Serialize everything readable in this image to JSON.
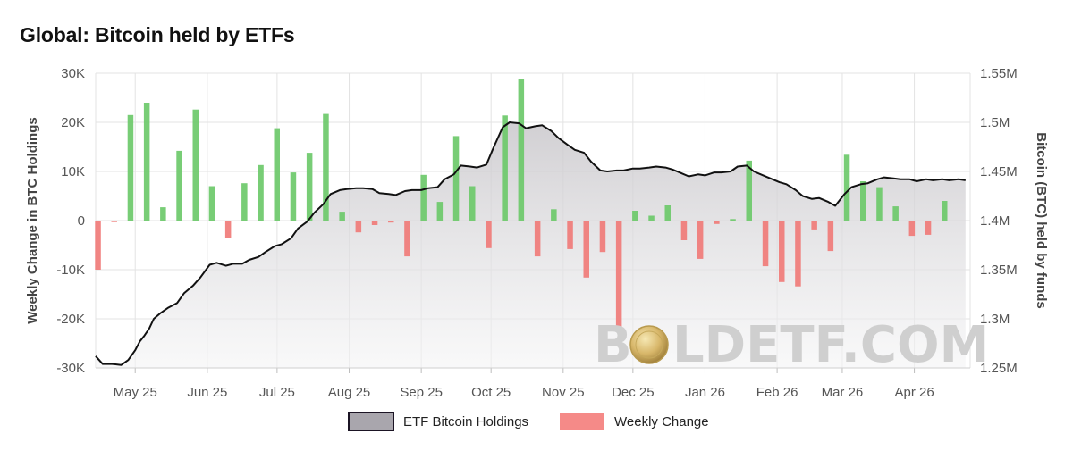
{
  "chart_data": {
    "type": "bar+area",
    "title": "Global: Bitcoin held by ETFs",
    "y_left_label": "Weekly Change in BTC Holdings",
    "y_right_label": "Bitcoin (BTC) held by funds",
    "y_left_range": [
      -30000,
      30000
    ],
    "y_right_range": [
      1250000,
      1550000
    ],
    "y_left_ticks": [
      "30K",
      "20K",
      "10K",
      "0",
      "-10K",
      "-20K",
      "-30K"
    ],
    "y_right_ticks": [
      "1.55M",
      "1.5M",
      "1.45M",
      "1.4M",
      "1.35M",
      "1.3M",
      "1.25M"
    ],
    "x_range": [
      "2025-04-14",
      "2026-04-25"
    ],
    "x_ticks": [
      {
        "label": "May 25",
        "date": "2025-05-01"
      },
      {
        "label": "Jun 25",
        "date": "2025-06-01"
      },
      {
        "label": "Jul 25",
        "date": "2025-07-01"
      },
      {
        "label": "Aug 25",
        "date": "2025-08-01"
      },
      {
        "label": "Sep 25",
        "date": "2025-09-01"
      },
      {
        "label": "Oct 25",
        "date": "2025-10-01"
      },
      {
        "label": "Nov 25",
        "date": "2025-11-01"
      },
      {
        "label": "Dec 25",
        "date": "2025-12-01"
      },
      {
        "label": "Jan 26",
        "date": "2026-01-01"
      },
      {
        "label": "Feb 26",
        "date": "2026-02-01"
      },
      {
        "label": "Mar 26",
        "date": "2026-03-01"
      },
      {
        "label": "Apr 26",
        "date": "2026-04-01"
      }
    ],
    "series": [
      {
        "name": "ETF Bitcoin Holdings",
        "type": "area",
        "axis": "right",
        "color": "#111111",
        "fill": "#b8b6ba",
        "points": [
          [
            "2025-04-14",
            1262000
          ],
          [
            "2025-04-17",
            1254000
          ],
          [
            "2025-04-21",
            1254000
          ],
          [
            "2025-04-25",
            1253000
          ],
          [
            "2025-04-28",
            1258000
          ],
          [
            "2025-05-01",
            1268000
          ],
          [
            "2025-05-03",
            1277000
          ],
          [
            "2025-05-05",
            1283000
          ],
          [
            "2025-05-07",
            1290000
          ],
          [
            "2025-05-09",
            1300000
          ],
          [
            "2025-05-12",
            1306000
          ],
          [
            "2025-05-15",
            1311000
          ],
          [
            "2025-05-19",
            1316000
          ],
          [
            "2025-05-22",
            1326000
          ],
          [
            "2025-05-26",
            1334000
          ],
          [
            "2025-05-29",
            1342000
          ],
          [
            "2025-06-02",
            1355000
          ],
          [
            "2025-06-05",
            1357000
          ],
          [
            "2025-06-09",
            1354000
          ],
          [
            "2025-06-12",
            1356000
          ],
          [
            "2025-06-16",
            1356000
          ],
          [
            "2025-06-19",
            1360000
          ],
          [
            "2025-06-23",
            1363000
          ],
          [
            "2025-06-26",
            1368000
          ],
          [
            "2025-06-30",
            1374000
          ],
          [
            "2025-07-03",
            1376000
          ],
          [
            "2025-07-07",
            1382000
          ],
          [
            "2025-07-10",
            1392000
          ],
          [
            "2025-07-14",
            1399000
          ],
          [
            "2025-07-17",
            1408000
          ],
          [
            "2025-07-21",
            1417000
          ],
          [
            "2025-07-24",
            1427000
          ],
          [
            "2025-07-28",
            1431000
          ],
          [
            "2025-07-31",
            1432000
          ],
          [
            "2025-08-04",
            1433000
          ],
          [
            "2025-08-07",
            1433000
          ],
          [
            "2025-08-11",
            1432000
          ],
          [
            "2025-08-14",
            1428000
          ],
          [
            "2025-08-18",
            1427000
          ],
          [
            "2025-08-21",
            1426000
          ],
          [
            "2025-08-25",
            1430000
          ],
          [
            "2025-08-28",
            1431000
          ],
          [
            "2025-09-01",
            1431000
          ],
          [
            "2025-09-04",
            1433000
          ],
          [
            "2025-09-08",
            1434000
          ],
          [
            "2025-09-11",
            1442000
          ],
          [
            "2025-09-15",
            1447000
          ],
          [
            "2025-09-18",
            1456000
          ],
          [
            "2025-09-22",
            1455000
          ],
          [
            "2025-09-25",
            1454000
          ],
          [
            "2025-09-29",
            1457000
          ],
          [
            "2025-10-02",
            1474000
          ],
          [
            "2025-10-06",
            1495000
          ],
          [
            "2025-10-09",
            1500000
          ],
          [
            "2025-10-13",
            1499000
          ],
          [
            "2025-10-16",
            1494000
          ],
          [
            "2025-10-20",
            1496000
          ],
          [
            "2025-10-23",
            1497000
          ],
          [
            "2025-10-27",
            1491000
          ],
          [
            "2025-10-30",
            1484000
          ],
          [
            "2025-11-03",
            1477000
          ],
          [
            "2025-11-06",
            1472000
          ],
          [
            "2025-11-10",
            1469000
          ],
          [
            "2025-11-13",
            1460000
          ],
          [
            "2025-11-17",
            1451000
          ],
          [
            "2025-11-20",
            1450000
          ],
          [
            "2025-11-24",
            1451000
          ],
          [
            "2025-11-27",
            1451000
          ],
          [
            "2025-12-01",
            1453000
          ],
          [
            "2025-12-04",
            1453000
          ],
          [
            "2025-12-08",
            1454000
          ],
          [
            "2025-12-11",
            1455000
          ],
          [
            "2025-12-15",
            1454000
          ],
          [
            "2025-12-18",
            1452000
          ],
          [
            "2025-12-22",
            1448000
          ],
          [
            "2025-12-25",
            1445000
          ],
          [
            "2025-12-29",
            1447000
          ],
          [
            "2026-01-01",
            1446000
          ],
          [
            "2026-01-05",
            1449000
          ],
          [
            "2026-01-08",
            1449000
          ],
          [
            "2026-01-12",
            1450000
          ],
          [
            "2026-01-15",
            1455000
          ],
          [
            "2026-01-19",
            1456000
          ],
          [
            "2026-01-22",
            1450000
          ],
          [
            "2026-01-26",
            1446000
          ],
          [
            "2026-01-29",
            1443000
          ],
          [
            "2026-02-02",
            1439000
          ],
          [
            "2026-02-05",
            1437000
          ],
          [
            "2026-02-09",
            1431000
          ],
          [
            "2026-02-12",
            1425000
          ],
          [
            "2026-02-16",
            1422000
          ],
          [
            "2026-02-19",
            1423000
          ],
          [
            "2026-02-23",
            1419000
          ],
          [
            "2026-02-26",
            1415000
          ],
          [
            "2026-03-02",
            1427000
          ],
          [
            "2026-03-05",
            1434000
          ],
          [
            "2026-03-09",
            1437000
          ],
          [
            "2026-03-12",
            1438000
          ],
          [
            "2026-03-16",
            1442000
          ],
          [
            "2026-03-19",
            1444000
          ],
          [
            "2026-03-23",
            1443000
          ],
          [
            "2026-03-26",
            1442000
          ],
          [
            "2026-03-30",
            1442000
          ],
          [
            "2026-04-02",
            1440000
          ],
          [
            "2026-04-06",
            1442000
          ],
          [
            "2026-04-09",
            1441000
          ],
          [
            "2026-04-13",
            1442000
          ],
          [
            "2026-04-16",
            1441000
          ],
          [
            "2026-04-20",
            1442000
          ],
          [
            "2026-04-23",
            1441000
          ]
        ]
      },
      {
        "name": "Weekly Change",
        "type": "bar",
        "axis": "left",
        "color_positive": "#6cc96a",
        "color_negative": "#f07b78",
        "points": [
          [
            "2025-04-14",
            -10000
          ],
          [
            "2025-04-21",
            -300
          ],
          [
            "2025-04-28",
            21500
          ],
          [
            "2025-05-05",
            24000
          ],
          [
            "2025-05-12",
            2700
          ],
          [
            "2025-05-19",
            14200
          ],
          [
            "2025-05-26",
            22600
          ],
          [
            "2025-06-02",
            7000
          ],
          [
            "2025-06-09",
            -3500
          ],
          [
            "2025-06-16",
            7600
          ],
          [
            "2025-06-23",
            11300
          ],
          [
            "2025-06-30",
            18800
          ],
          [
            "2025-07-07",
            9800
          ],
          [
            "2025-07-14",
            13800
          ],
          [
            "2025-07-21",
            21700
          ],
          [
            "2025-07-28",
            1800
          ],
          [
            "2025-08-04",
            -2400
          ],
          [
            "2025-08-11",
            -900
          ],
          [
            "2025-08-18",
            -400
          ],
          [
            "2025-08-25",
            -7300
          ],
          [
            "2025-09-01",
            9300
          ],
          [
            "2025-09-08",
            3800
          ],
          [
            "2025-09-15",
            17200
          ],
          [
            "2025-09-22",
            7000
          ],
          [
            "2025-09-29",
            -5600
          ],
          [
            "2025-10-06",
            21400
          ],
          [
            "2025-10-13",
            28900
          ],
          [
            "2025-10-20",
            -7300
          ],
          [
            "2025-10-27",
            2300
          ],
          [
            "2025-11-03",
            -5800
          ],
          [
            "2025-11-10",
            -11600
          ],
          [
            "2025-11-17",
            -6400
          ],
          [
            "2025-11-24",
            -22000
          ],
          [
            "2025-12-01",
            2000
          ],
          [
            "2025-12-08",
            1000
          ],
          [
            "2025-12-15",
            3100
          ],
          [
            "2025-12-22",
            -4000
          ],
          [
            "2025-12-29",
            -7800
          ],
          [
            "2026-01-05",
            -700
          ],
          [
            "2026-01-12",
            300
          ],
          [
            "2026-01-19",
            12200
          ],
          [
            "2026-01-26",
            -9300
          ],
          [
            "2026-02-02",
            -12500
          ],
          [
            "2026-02-09",
            -13400
          ],
          [
            "2026-02-16",
            -1800
          ],
          [
            "2026-02-23",
            -6200
          ],
          [
            "2026-03-02",
            13400
          ],
          [
            "2026-03-09",
            8000
          ],
          [
            "2026-03-16",
            6800
          ],
          [
            "2026-03-23",
            2900
          ],
          [
            "2026-03-30",
            -3100
          ],
          [
            "2026-04-06",
            -2900
          ],
          [
            "2026-04-13",
            4000
          ]
        ]
      }
    ],
    "legend": {
      "placement": "bottom-center",
      "items": [
        {
          "label": "ETF Bitcoin Holdings",
          "color": "#a9a6ad",
          "border": "#1b1424"
        },
        {
          "label": "Weekly Change",
          "color": "#f58a88",
          "border": "#f58a88"
        }
      ]
    },
    "grid": true,
    "watermark": "BOLDETF.COM"
  }
}
